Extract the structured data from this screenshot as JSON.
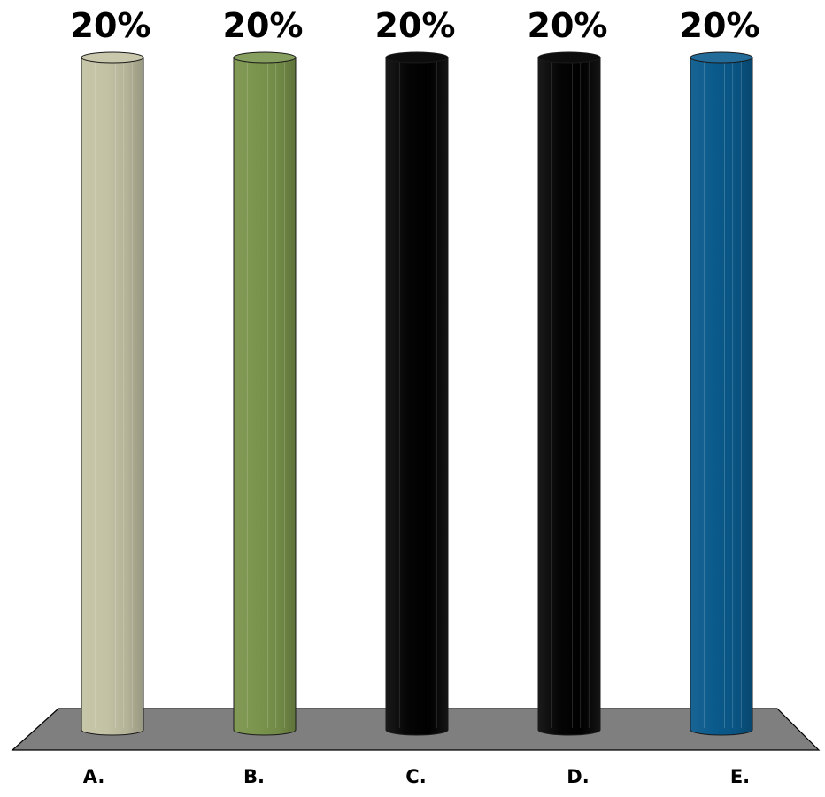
{
  "chart_data": {
    "type": "bar",
    "style": "3d-cylinder",
    "categories": [
      "A.",
      "B.",
      "C.",
      "D.",
      "E."
    ],
    "values": [
      20,
      20,
      20,
      20,
      20
    ],
    "value_labels": [
      "20%",
      "20%",
      "20%",
      "20%",
      "20%"
    ],
    "unit": "%",
    "ylim": [
      0,
      20
    ],
    "grid": false,
    "legend": "none",
    "title": "",
    "xlabel": "",
    "ylabel": "",
    "bar_colors": [
      "#C3C2A4",
      "#7A944C",
      "#000000",
      "#000000",
      "#0A5A8C"
    ],
    "floor_color": "#7F7F7F"
  }
}
